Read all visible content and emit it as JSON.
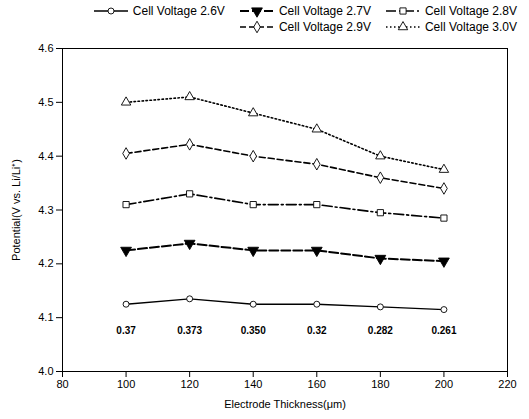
{
  "chart_data": {
    "type": "line",
    "x": [
      100,
      120,
      140,
      160,
      180,
      200
    ],
    "series": [
      {
        "name": "Cell Voltage 2.6V",
        "color": "black",
        "marker": "circle",
        "line_style": "solid",
        "values": [
          4.125,
          4.135,
          4.125,
          4.125,
          4.12,
          4.115
        ]
      },
      {
        "name": "Cell Voltage 2.7V",
        "color": "black",
        "marker": "triangle-down",
        "line_style": "long-dashed",
        "values": [
          4.225,
          4.238,
          4.225,
          4.225,
          4.21,
          4.205
        ]
      },
      {
        "name": "Cell Voltage 2.8V",
        "color": "black",
        "marker": "square",
        "line_style": "dash-dot",
        "values": [
          4.31,
          4.33,
          4.31,
          4.31,
          4.295,
          4.285
        ]
      },
      {
        "name": "Cell Voltage 2.9V",
        "color": "black",
        "marker": "diamond",
        "line_style": "dashed",
        "values": [
          4.405,
          4.422,
          4.4,
          4.385,
          4.36,
          4.34
        ]
      },
      {
        "name": "Cell Voltage 3.0V",
        "color": "black",
        "marker": "triangle",
        "line_style": "dotted",
        "values": [
          4.5,
          4.51,
          4.48,
          4.45,
          4.4,
          4.375
        ]
      }
    ],
    "annotations": [
      {
        "x": 100,
        "y": 4.083,
        "text": "0.37"
      },
      {
        "x": 120,
        "y": 4.083,
        "text": "0.373"
      },
      {
        "x": 140,
        "y": 4.083,
        "text": "0.350"
      },
      {
        "x": 160,
        "y": 4.083,
        "text": "0.32"
      },
      {
        "x": 180,
        "y": 4.083,
        "text": "0.282"
      },
      {
        "x": 200,
        "y": 4.083,
        "text": "0.261"
      }
    ],
    "xlabel": "Electrode Thickness(μm)",
    "ylabel": "Potential(V vs. Li/Li⁺)",
    "xlim": [
      80,
      220
    ],
    "ylim": [
      4.0,
      4.6
    ],
    "xticks": [
      80,
      100,
      120,
      140,
      160,
      180,
      200,
      220
    ],
    "yticks": [
      {
        "value": 4.0,
        "label": "4.0"
      },
      4.1,
      4.2,
      4.3,
      4.4,
      4.5,
      4.6
    ],
    "legend": "upper right",
    "grid": false
  }
}
